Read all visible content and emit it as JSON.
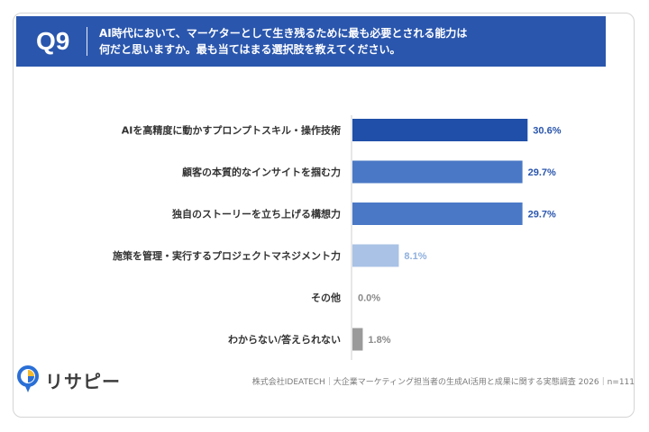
{
  "header": {
    "qnum": "Q9",
    "question": "AI時代において、マーケターとして生き残るために最も必要とされる能力は\n何だと思いますか。最も当てはまる選択肢を教えてください。"
  },
  "chart_data": {
    "type": "bar",
    "orientation": "horizontal",
    "categories": [
      "AIを高精度に動かすプロンプトスキル・操作技術",
      "顧客の本質的なインサイトを掴む力",
      "独自のストーリーを立ち上げる構想力",
      "施策を管理・実行するプロジェクトマネジメント力",
      "その他",
      "わからない/答えられない"
    ],
    "values": [
      30.6,
      29.7,
      29.7,
      8.1,
      0.0,
      1.8
    ],
    "value_labels": [
      "30.6%",
      "29.7%",
      "29.7%",
      "8.1%",
      "0.0%",
      "1.8%"
    ],
    "bar_colors": [
      "#1f4fa8",
      "#4a78c6",
      "#4a78c6",
      "#a9c2e6",
      "#9a9a9a",
      "#9a9a9a"
    ],
    "label_colors": [
      "#2a56ad",
      "#2a56ad",
      "#2a56ad",
      "#8fb0de",
      "#8a8a8a",
      "#8a8a8a"
    ]
  },
  "footer": {
    "logo_text": "リサピー",
    "source": "株式会社IDEATECH｜大企業マーケティング担当者の生成AI活用と成果に関する実態調査 2026｜n=111"
  },
  "colors": {
    "header_bg": "#2a56ad",
    "logo_blue": "#2a6fd6",
    "logo_yellow": "#f3b92f"
  }
}
